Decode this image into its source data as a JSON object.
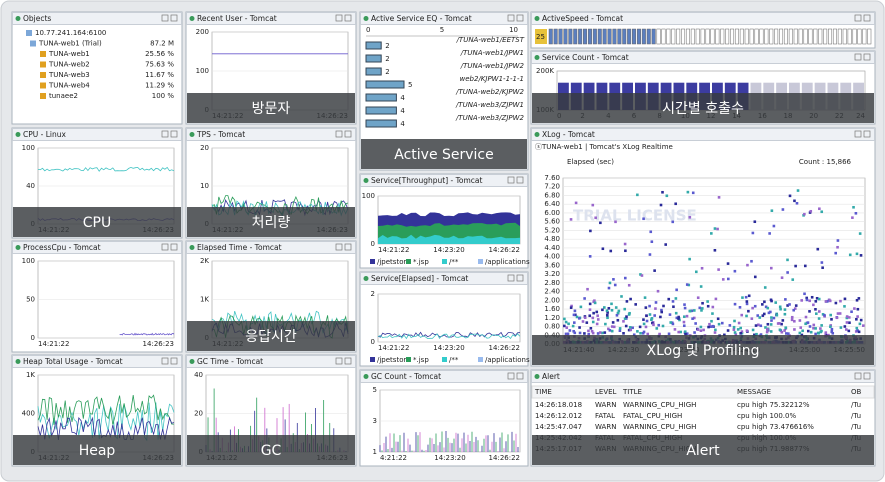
{
  "panels": [
    {
      "kind": "tree",
      "title": "Objects",
      "items": [
        {
          "label": "10.77.241.164:6100",
          "value": ""
        },
        {
          "label": "TUNA-web1 (Trial)",
          "value": "87.2 M"
        },
        {
          "label": "TUNA-web1",
          "value": "25.56 %"
        },
        {
          "label": "TUNA-web2",
          "value": "75.63 %"
        },
        {
          "label": "TUNA-web3",
          "value": "11.67 %"
        },
        {
          "label": "TUNA-web4",
          "value": "11.29 %"
        },
        {
          "label": "tunaee2",
          "value": "100 %"
        }
      ]
    },
    {
      "kind": "line",
      "title": "Recent User - Tomcat",
      "caption": "방문자",
      "yticks": [
        "200",
        "100",
        "0"
      ],
      "xticks": [
        "14:21:22",
        "14:26:23"
      ]
    },
    {
      "kind": "eq",
      "title": "Active Service EQ - Tomcat",
      "caption": "Active Service",
      "scale": [
        "0",
        "5",
        "10"
      ],
      "rows": [
        {
          "count": 2,
          "name": "/TUNA-web1/EETST"
        },
        {
          "count": 2,
          "name": "/TUNA-web1/JPW1"
        },
        {
          "count": 2,
          "name": "/TUNA-web1/JPW2"
        },
        {
          "count": 5,
          "name": "web2/KJPW1-1-1-1"
        },
        {
          "count": 4,
          "name": "/TUNA-web2/KJPW2"
        },
        {
          "count": 4,
          "name": "/TUNA-web3/ZJPW1"
        },
        {
          "count": 4,
          "name": "/TUNA-web3/ZJPW2"
        }
      ]
    },
    {
      "kind": "speed",
      "title": "ActiveSpeed - Tomcat",
      "value": "25"
    },
    {
      "kind": "count",
      "title": "Service Count - Tomcat",
      "caption": "시간별 호출수",
      "yticks": [
        "200K",
        "100K"
      ],
      "xticks": [
        "0",
        "2",
        "4",
        "6",
        "8",
        "10",
        "12",
        "14",
        "16",
        "18",
        "20",
        "22",
        "24"
      ]
    },
    {
      "kind": "line",
      "title": "CPU - Linux",
      "caption": "CPU",
      "yticks": [
        "100",
        "40",
        "0"
      ],
      "xticks": [
        "14:21:22",
        "14:26:23"
      ]
    },
    {
      "kind": "line",
      "title": "TPS - Tomcat",
      "caption": "처리량",
      "yticks": [
        "20",
        "10",
        "0"
      ],
      "xticks": [
        "14:21:22",
        "14:26:23"
      ]
    },
    {
      "kind": "area",
      "title": "Service[Throughput] - Tomcat",
      "yticks": [
        "100",
        "0"
      ],
      "xticks": [
        "14:21:22",
        "14:23:20",
        "14:26:22"
      ],
      "legend": [
        "/jpetstore",
        "*.jsp",
        "/**",
        "/applications"
      ]
    },
    {
      "kind": "xlog",
      "title": "XLog - Tomcat",
      "caption": "XLog 및 Profiling",
      "subtitle": "ⓢTUNA-web1 | Tomcat's XLog Realtime",
      "ylabel": "Elapsed (sec)",
      "count": "Count : 15,866",
      "watermark": "TRIAL LICENSE",
      "yticks": [
        "7.60",
        "7.20",
        "6.80",
        "6.40",
        "6.00",
        "5.60",
        "5.20",
        "4.80",
        "4.40",
        "4.00",
        "3.60",
        "3.20",
        "2.80",
        "2.40",
        "2.00",
        "1.60",
        "1.20",
        "0.80",
        "0.40",
        "0.00"
      ],
      "xticks": [
        "14:21:40",
        "14:22:30",
        "14:23:20",
        "14:24:10",
        "14:25:00",
        "14:25:50"
      ]
    },
    {
      "kind": "line",
      "title": "ProcessCpu - Tomcat",
      "yticks": [
        "100",
        "50",
        "0"
      ],
      "xticks": [
        "14:21:22",
        "14:26:23"
      ]
    },
    {
      "kind": "line",
      "title": "Elapsed Time - Tomcat",
      "caption": "응답시간",
      "yticks": [
        "2K",
        "1K",
        "0"
      ],
      "xticks": [
        "14:21:22"
      ]
    },
    {
      "kind": "line2",
      "title": "Service[Elapsed] - Tomcat",
      "yticks": [
        "2",
        "0"
      ],
      "xticks": [
        "14:21:22",
        "14:23:20",
        "14:26:22"
      ],
      "legend": [
        "/jpetstore",
        "*.jsp",
        "/**",
        "/applications"
      ]
    },
    {
      "kind": "line",
      "title": "Heap Total Usage - Tomcat",
      "caption": "Heap",
      "yticks": [
        "1K",
        "400",
        "0"
      ],
      "xticks": [
        "14:21:22",
        "14:26:23"
      ]
    },
    {
      "kind": "gc",
      "title": "GC Time - Tomcat",
      "caption": "GC",
      "yticks": [
        "40",
        "20",
        "0"
      ],
      "xticks": [
        "14:21:22",
        "14:26:23"
      ]
    },
    {
      "kind": "gc",
      "title": "GC Count - Tomcat",
      "yticks": [
        "5",
        "3",
        "1"
      ],
      "xticks": [
        "4:21:22",
        "14:23:20",
        "14:26:22"
      ]
    },
    {
      "kind": "table",
      "title": "Alert",
      "caption": "Alert",
      "columns": [
        "TIME",
        "LEVEL",
        "TITLE",
        "MESSAGE",
        "OB"
      ],
      "rows": [
        [
          "14:26:18.018",
          "WARN",
          "WARNING_CPU_HIGH",
          "cpu high 75.32212%",
          "/Tu"
        ],
        [
          "14:26:12.012",
          "FATAL",
          "FATAL_CPU_HIGH",
          "cpu high 100.0%",
          "/Tu"
        ],
        [
          "14:25:47.047",
          "WARN",
          "WARNING_CPU_HIGH",
          "cpu high 73.476616%",
          "/Tu"
        ],
        [
          "14:25:42.042",
          "FATAL",
          "FATAL_CPU_HIGH",
          "cpu high 100.0%",
          "/Tu"
        ],
        [
          "14:25:17.017",
          "WARN",
          "WARNING_CPU_HIGH",
          "cpu high 71.98877%",
          "/Tu"
        ]
      ]
    }
  ]
}
